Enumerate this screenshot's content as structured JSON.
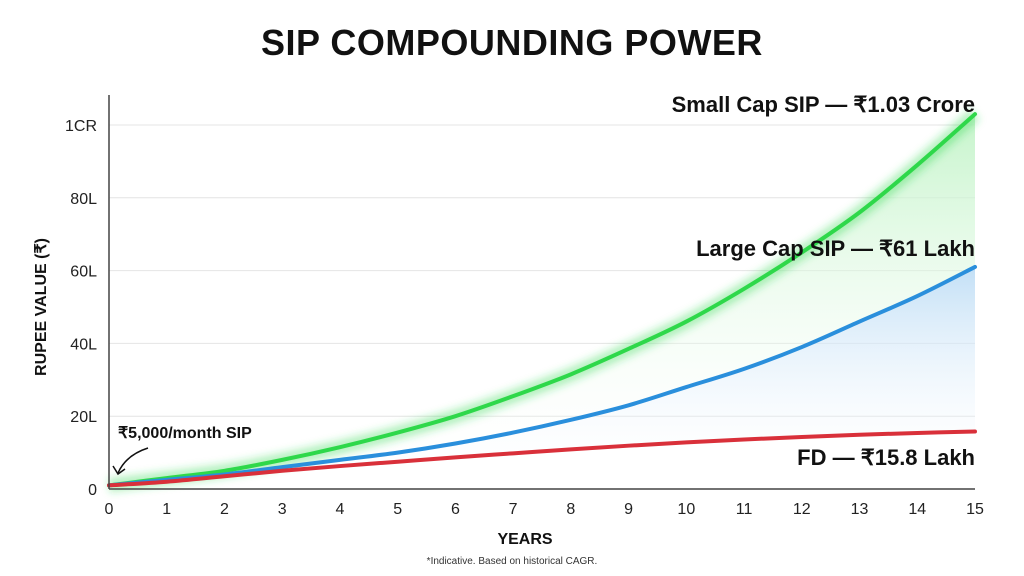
{
  "chart_data": {
    "type": "line",
    "title": "SIP COMPOUNDING POWER",
    "xlabel": "YEARS",
    "ylabel": "RUPEE VALUE (₹)",
    "xlim": [
      0,
      15
    ],
    "ylim": [
      0,
      100
    ],
    "x_ticks": [
      "0",
      "1",
      "2",
      "3",
      "4",
      "5",
      "6",
      "7",
      "8",
      "9",
      "10",
      "11",
      "12",
      "13",
      "14",
      "15"
    ],
    "y_ticks": [
      {
        "value": 0,
        "label": "0"
      },
      {
        "value": 20,
        "label": "20L"
      },
      {
        "value": 40,
        "label": "40L"
      },
      {
        "value": 60,
        "label": "60L"
      },
      {
        "value": 80,
        "label": "80L"
      },
      {
        "value": 100,
        "label": "1CR"
      }
    ],
    "grid": true,
    "x": [
      0,
      1,
      2,
      3,
      4,
      5,
      6,
      7,
      8,
      9,
      10,
      11,
      12,
      13,
      14,
      15
    ],
    "series": [
      {
        "name": "Small Cap SIP — ₹1.03 Crore",
        "color": "#2ed84a",
        "fill": "#d9f8dc",
        "values": [
          1,
          3,
          5,
          8,
          11.5,
          15.5,
          20,
          25.5,
          31.5,
          38.5,
          46,
          55,
          65,
          76,
          89,
          103
        ]
      },
      {
        "name": "Large Cap SIP — ₹61 Lakh",
        "color": "#2a8fdc",
        "fill": "#d6e9f8",
        "values": [
          1,
          2.5,
          4,
          6,
          8,
          10,
          12.5,
          15.5,
          19,
          23,
          28,
          33,
          39,
          46,
          53,
          61
        ]
      },
      {
        "name": "FD — ₹15.8 Lakh",
        "color": "#d9303a",
        "fill": "none",
        "values": [
          1,
          2,
          3.5,
          5,
          6.3,
          7.5,
          8.7,
          9.8,
          10.9,
          11.9,
          12.8,
          13.6,
          14.3,
          14.9,
          15.4,
          15.8
        ]
      }
    ],
    "annotation": "₹5,000/month SIP",
    "footnote": "*Indicative. Based on historical CAGR."
  }
}
